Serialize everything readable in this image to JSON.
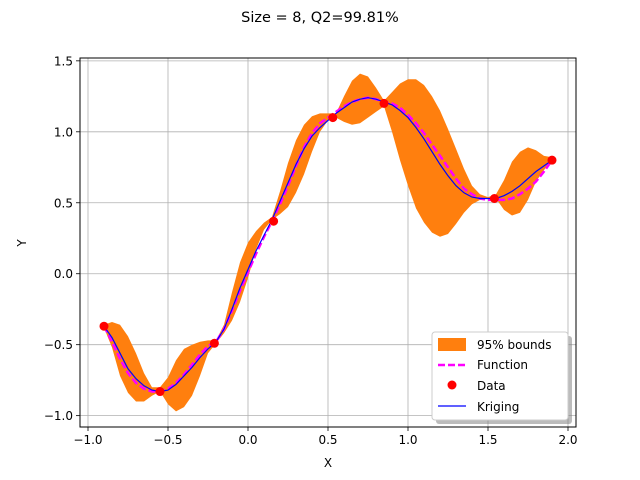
{
  "chart_data": {
    "type": "line",
    "title": "Size = 8, Q2=99.81%",
    "xlabel": "X",
    "ylabel": "Y",
    "xlim": [
      -1.05,
      2.05
    ],
    "ylim": [
      -1.08,
      1.52
    ],
    "xticks": [
      -1.0,
      -0.5,
      0.0,
      0.5,
      1.0,
      1.5,
      2.0
    ],
    "xtick_labels": [
      "−1.0",
      "−0.5",
      "0.0",
      "0.5",
      "1.0",
      "1.5",
      "2.0"
    ],
    "yticks": [
      -1.0,
      -0.5,
      0.0,
      0.5,
      1.0,
      1.5
    ],
    "ytick_labels": [
      "−1.0",
      "−0.5",
      "0.0",
      "0.5",
      "1.0",
      "1.5"
    ],
    "grid": true,
    "legend_position": "lower-right",
    "colors": {
      "bounds": "#ff7f0e",
      "function": "#ff00ff",
      "data": "#ff0000",
      "kriging": "#0000ff"
    },
    "series": [
      {
        "name": "95% bounds",
        "kind": "band",
        "x": [
          -0.9,
          -0.85,
          -0.8,
          -0.75,
          -0.7,
          -0.65,
          -0.6,
          -0.55,
          -0.5,
          -0.45,
          -0.4,
          -0.35,
          -0.3,
          -0.25,
          -0.2,
          -0.15,
          -0.1,
          -0.05,
          0.0,
          0.05,
          0.1,
          0.15,
          0.2,
          0.25,
          0.3,
          0.35,
          0.4,
          0.45,
          0.5,
          0.55,
          0.6,
          0.65,
          0.7,
          0.75,
          0.8,
          0.85,
          0.9,
          0.95,
          1.0,
          1.05,
          1.1,
          1.15,
          1.2,
          1.25,
          1.3,
          1.35,
          1.4,
          1.45,
          1.5,
          1.55,
          1.6,
          1.65,
          1.7,
          1.75,
          1.8,
          1.85,
          1.9
        ],
        "lower": [
          -0.38,
          -0.52,
          -0.72,
          -0.84,
          -0.9,
          -0.9,
          -0.86,
          -0.83,
          -0.92,
          -0.97,
          -0.94,
          -0.86,
          -0.72,
          -0.56,
          -0.49,
          -0.42,
          -0.33,
          -0.2,
          -0.03,
          0.17,
          0.31,
          0.38,
          0.42,
          0.47,
          0.57,
          0.7,
          0.86,
          1.0,
          1.08,
          1.1,
          1.07,
          1.05,
          1.06,
          1.1,
          1.14,
          1.18,
          1.0,
          0.8,
          0.62,
          0.46,
          0.36,
          0.29,
          0.26,
          0.28,
          0.35,
          0.43,
          0.49,
          0.52,
          0.53,
          0.53,
          0.45,
          0.41,
          0.43,
          0.52,
          0.65,
          0.73,
          0.8
        ],
        "upper": [
          -0.36,
          -0.34,
          -0.36,
          -0.44,
          -0.56,
          -0.7,
          -0.8,
          -0.8,
          -0.73,
          -0.61,
          -0.53,
          -0.5,
          -0.48,
          -0.47,
          -0.47,
          -0.36,
          -0.13,
          0.08,
          0.22,
          0.3,
          0.36,
          0.4,
          0.58,
          0.78,
          0.94,
          1.05,
          1.11,
          1.13,
          1.13,
          1.13,
          1.25,
          1.36,
          1.41,
          1.39,
          1.31,
          1.22,
          1.28,
          1.34,
          1.37,
          1.37,
          1.33,
          1.25,
          1.15,
          1.02,
          0.88,
          0.74,
          0.62,
          0.56,
          0.54,
          0.56,
          0.66,
          0.79,
          0.86,
          0.89,
          0.87,
          0.83,
          0.82
        ]
      },
      {
        "name": "Function",
        "kind": "dashed-line",
        "x": [
          -0.9,
          -0.85,
          -0.8,
          -0.75,
          -0.7,
          -0.65,
          -0.6,
          -0.55,
          -0.5,
          -0.45,
          -0.4,
          -0.35,
          -0.3,
          -0.25,
          -0.2,
          -0.15,
          -0.1,
          -0.05,
          0.0,
          0.05,
          0.1,
          0.15,
          0.2,
          0.25,
          0.3,
          0.35,
          0.4,
          0.45,
          0.5,
          0.55,
          0.6,
          0.65,
          0.7,
          0.75,
          0.8,
          0.85,
          0.9,
          0.95,
          1.0,
          1.05,
          1.1,
          1.15,
          1.2,
          1.25,
          1.3,
          1.35,
          1.4,
          1.45,
          1.5,
          1.55,
          1.6,
          1.65,
          1.7,
          1.75,
          1.8,
          1.85,
          1.9
        ],
        "y": [
          -0.37,
          -0.48,
          -0.6,
          -0.7,
          -0.77,
          -0.81,
          -0.83,
          -0.83,
          -0.81,
          -0.77,
          -0.71,
          -0.64,
          -0.57,
          -0.51,
          -0.48,
          -0.39,
          -0.26,
          -0.12,
          0.01,
          0.14,
          0.26,
          0.37,
          0.49,
          0.62,
          0.76,
          0.89,
          0.99,
          1.06,
          1.1,
          1.14,
          1.18,
          1.21,
          1.23,
          1.24,
          1.23,
          1.21,
          1.2,
          1.17,
          1.12,
          1.06,
          0.99,
          0.91,
          0.83,
          0.75,
          0.67,
          0.6,
          0.56,
          0.53,
          0.52,
          0.52,
          0.52,
          0.53,
          0.56,
          0.6,
          0.65,
          0.72,
          0.8
        ]
      },
      {
        "name": "Data",
        "kind": "points",
        "x": [
          -0.9,
          -0.55,
          -0.21,
          0.16,
          0.53,
          0.85,
          1.54,
          1.9
        ],
        "y": [
          -0.37,
          -0.83,
          -0.49,
          0.37,
          1.1,
          1.2,
          0.53,
          0.8
        ]
      },
      {
        "name": "Kriging",
        "kind": "line",
        "x": [
          -0.9,
          -0.85,
          -0.8,
          -0.75,
          -0.7,
          -0.65,
          -0.6,
          -0.55,
          -0.5,
          -0.45,
          -0.4,
          -0.35,
          -0.3,
          -0.25,
          -0.2,
          -0.15,
          -0.1,
          -0.05,
          0.0,
          0.05,
          0.1,
          0.15,
          0.2,
          0.25,
          0.3,
          0.35,
          0.4,
          0.45,
          0.5,
          0.55,
          0.6,
          0.65,
          0.7,
          0.75,
          0.8,
          0.85,
          0.9,
          0.95,
          1.0,
          1.05,
          1.1,
          1.15,
          1.2,
          1.25,
          1.3,
          1.35,
          1.4,
          1.45,
          1.5,
          1.55,
          1.6,
          1.65,
          1.7,
          1.75,
          1.8,
          1.85,
          1.9
        ],
        "y": [
          -0.37,
          -0.45,
          -0.56,
          -0.67,
          -0.74,
          -0.79,
          -0.82,
          -0.83,
          -0.82,
          -0.78,
          -0.72,
          -0.66,
          -0.59,
          -0.53,
          -0.48,
          -0.39,
          -0.25,
          -0.1,
          0.03,
          0.16,
          0.27,
          0.38,
          0.51,
          0.64,
          0.77,
          0.88,
          0.97,
          1.03,
          1.08,
          1.13,
          1.17,
          1.21,
          1.23,
          1.24,
          1.23,
          1.21,
          1.19,
          1.15,
          1.1,
          1.03,
          0.95,
          0.86,
          0.77,
          0.69,
          0.62,
          0.57,
          0.54,
          0.53,
          0.53,
          0.53,
          0.55,
          0.58,
          0.62,
          0.67,
          0.72,
          0.76,
          0.8
        ]
      }
    ]
  }
}
